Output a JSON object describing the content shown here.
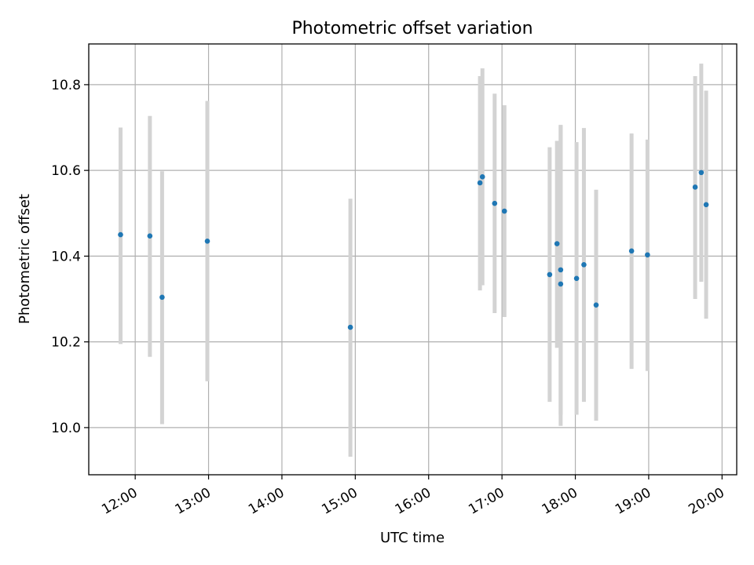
{
  "chart_data": {
    "type": "scatter",
    "title": "Photometric offset variation",
    "xlabel": "UTC time",
    "ylabel": "Photometric offset",
    "x_ticks": [
      "12:00",
      "13:00",
      "14:00",
      "15:00",
      "16:00",
      "17:00",
      "18:00",
      "19:00",
      "20:00"
    ],
    "y_ticks": [
      "10.0",
      "10.2",
      "10.4",
      "10.6",
      "10.8"
    ],
    "xlim": [
      "11:22",
      "20:12"
    ],
    "ylim": [
      9.89,
      10.895
    ],
    "grid": true,
    "legend": "none",
    "point_color": "#1f77b4",
    "errorbar_color": "#d3d3d3",
    "points": [
      {
        "x": "11:48",
        "y": 10.45,
        "ylow": 10.195,
        "yhigh": 10.7
      },
      {
        "x": "12:12",
        "y": 10.447,
        "ylow": 10.165,
        "yhigh": 10.727
      },
      {
        "x": "12:22",
        "y": 10.304,
        "ylow": 10.008,
        "yhigh": 10.598
      },
      {
        "x": "12:59",
        "y": 10.435,
        "ylow": 10.108,
        "yhigh": 10.762
      },
      {
        "x": "14:56",
        "y": 10.234,
        "ylow": 9.932,
        "yhigh": 10.534
      },
      {
        "x": "16:42",
        "y": 10.571,
        "ylow": 10.32,
        "yhigh": 10.82
      },
      {
        "x": "16:44",
        "y": 10.585,
        "ylow": 10.332,
        "yhigh": 10.838
      },
      {
        "x": "16:54",
        "y": 10.523,
        "ylow": 10.267,
        "yhigh": 10.779
      },
      {
        "x": "17:02",
        "y": 10.505,
        "ylow": 10.258,
        "yhigh": 10.752
      },
      {
        "x": "17:39",
        "y": 10.357,
        "ylow": 10.06,
        "yhigh": 10.654
      },
      {
        "x": "17:45",
        "y": 10.429,
        "ylow": 10.186,
        "yhigh": 10.669
      },
      {
        "x": "17:48",
        "y": 10.335,
        "ylow": 10.004,
        "yhigh": 10.706
      },
      {
        "x": "17:48",
        "y": 10.368,
        "ylow": 10.03,
        "yhigh": 10.706
      },
      {
        "x": "18:01",
        "y": 10.348,
        "ylow": 10.03,
        "yhigh": 10.666
      },
      {
        "x": "18:07",
        "y": 10.38,
        "ylow": 10.06,
        "yhigh": 10.699
      },
      {
        "x": "18:17",
        "y": 10.286,
        "ylow": 10.016,
        "yhigh": 10.555
      },
      {
        "x": "18:46",
        "y": 10.412,
        "ylow": 10.137,
        "yhigh": 10.686
      },
      {
        "x": "18:59",
        "y": 10.403,
        "ylow": 10.132,
        "yhigh": 10.672
      },
      {
        "x": "19:38",
        "y": 10.561,
        "ylow": 10.3,
        "yhigh": 10.82
      },
      {
        "x": "19:43",
        "y": 10.595,
        "ylow": 10.34,
        "yhigh": 10.849
      },
      {
        "x": "19:47",
        "y": 10.52,
        "ylow": 10.254,
        "yhigh": 10.786
      }
    ]
  }
}
